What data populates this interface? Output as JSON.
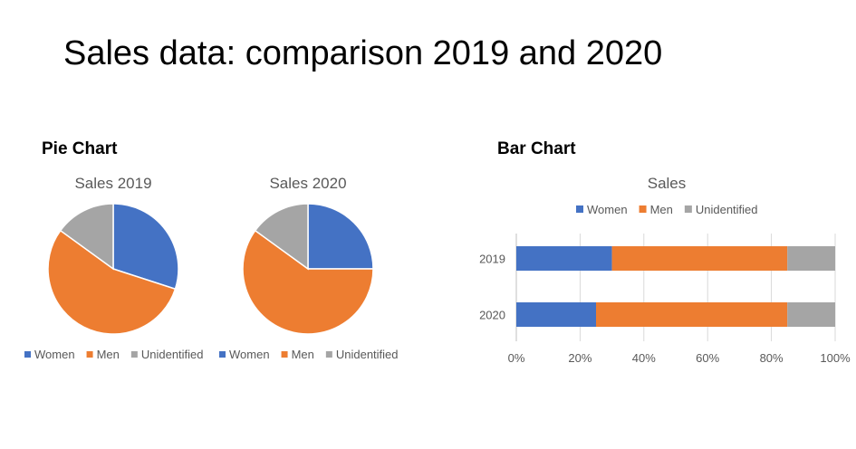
{
  "slide": {
    "title": "Sales data: comparison 2019 and 2020",
    "pie_heading": "Pie Chart",
    "bar_heading": "Bar Chart"
  },
  "colors": {
    "women": "#4472C4",
    "men": "#ED7D31",
    "unidentified": "#A5A5A5",
    "text_gray": "#595959",
    "grid": "#D9D9D9"
  },
  "chart_data": [
    {
      "type": "pie",
      "title": "Sales 2019",
      "categories": [
        "Women",
        "Men",
        "Unidentified"
      ],
      "values": [
        30,
        55,
        15
      ],
      "legend": "bottom"
    },
    {
      "type": "pie",
      "title": "Sales 2020",
      "categories": [
        "Women",
        "Men",
        "Unidentified"
      ],
      "values": [
        25,
        60,
        15
      ],
      "legend": "bottom"
    },
    {
      "type": "bar",
      "stacked": "percent",
      "orientation": "horizontal",
      "title": "Sales",
      "categories": [
        "2019",
        "2020"
      ],
      "series": [
        {
          "name": "Women",
          "values": [
            30,
            25
          ]
        },
        {
          "name": "Men",
          "values": [
            55,
            60
          ]
        },
        {
          "name": "Unidentified",
          "values": [
            15,
            15
          ]
        }
      ],
      "xlim": [
        0,
        100
      ],
      "x_ticks": [
        "0%",
        "20%",
        "40%",
        "60%",
        "80%",
        "100%"
      ],
      "grid": true,
      "legend": "top"
    }
  ]
}
